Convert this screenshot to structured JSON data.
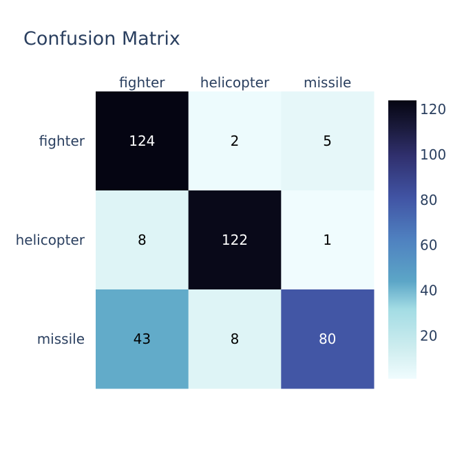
{
  "chart_data": {
    "type": "heatmap",
    "title": "Confusion Matrix",
    "x_categories": [
      "fighter",
      "helicopter",
      "missile"
    ],
    "y_categories": [
      "fighter",
      "helicopter",
      "missile"
    ],
    "z": [
      [
        124,
        2,
        5
      ],
      [
        8,
        122,
        1
      ],
      [
        43,
        8,
        80
      ]
    ],
    "colorscale": [
      [
        0.0,
        "#f0fcfe"
      ],
      [
        0.1,
        "#d1eef0"
      ],
      [
        0.25,
        "#a3dce4"
      ],
      [
        0.35,
        "#5ca6c7"
      ],
      [
        0.5,
        "#4f81c0"
      ],
      [
        0.65,
        "#4154a4"
      ],
      [
        0.8,
        "#30306e"
      ],
      [
        0.9,
        "#1b1b3d"
      ],
      [
        1.0,
        "#050512"
      ]
    ],
    "zmin": 1,
    "zmax": 124,
    "colorbar_ticks": [
      20,
      40,
      60,
      80,
      100,
      120
    ],
    "xaxis_side": "top",
    "grid": false,
    "text_color_dark": "#000000",
    "text_color_light": "#ffffff"
  }
}
